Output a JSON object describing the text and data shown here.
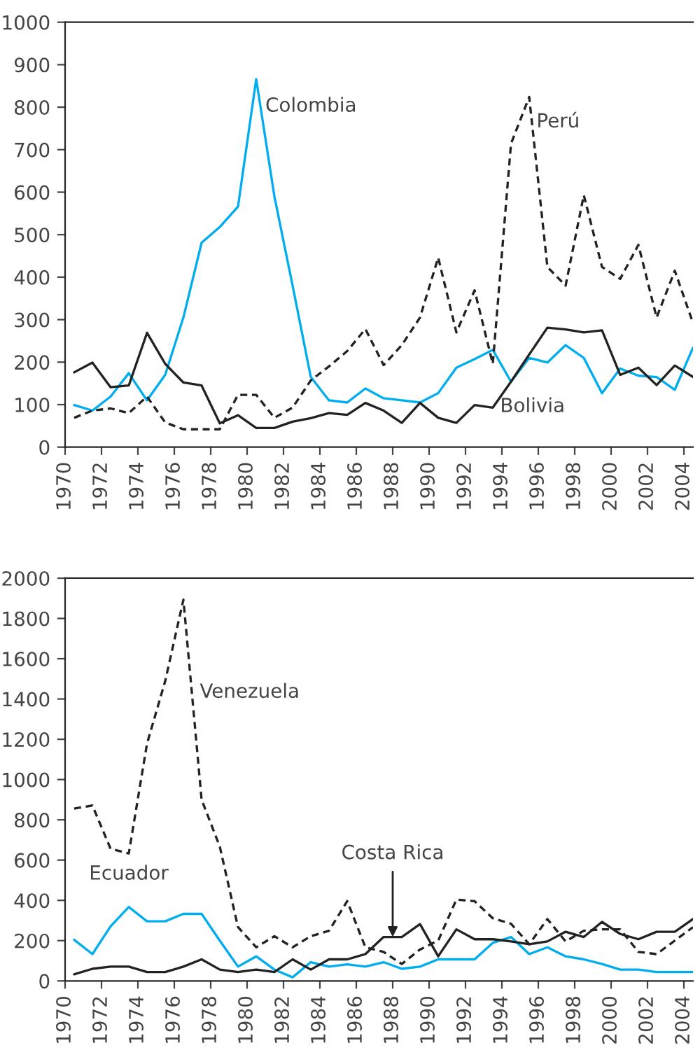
{
  "chart_data": [
    {
      "type": "line",
      "x": [
        1970.5,
        1971.5,
        1972.5,
        1973.5,
        1974.5,
        1975.5,
        1976.5,
        1977.5,
        1978.5,
        1979.5,
        1980.5,
        1981.5,
        1982.5,
        1983.5,
        1984.5,
        1985.5,
        1986.5,
        1987.5,
        1988.5,
        1989.5,
        1990.5,
        1991.5,
        1992.5,
        1993.5,
        1994.5,
        1995.5,
        1996.5,
        1997.5,
        1998.5,
        1999.5,
        2000.5,
        2001.5,
        2002.5,
        2003.5,
        2004.5
      ],
      "xlim": [
        1970,
        2004.5
      ],
      "xticks": [
        1970,
        1972,
        1974,
        1976,
        1978,
        1980,
        1982,
        1984,
        1986,
        1988,
        1990,
        1992,
        1994,
        1996,
        1998,
        2000,
        2002,
        2004
      ],
      "ylim": [
        0,
        1000
      ],
      "yticks": [
        0,
        100,
        200,
        300,
        400,
        500,
        600,
        700,
        800,
        900,
        1000
      ],
      "grid": false,
      "series": [
        {
          "color": "#00aeef",
          "line_style": "solid",
          "values": [
            99,
            86,
            119,
            174,
            110,
            170,
            305,
            481,
            518,
            566,
            866,
            590,
            380,
            165,
            110,
            105,
            138,
            115,
            110,
            105,
            127,
            187,
            207,
            229,
            154,
            210,
            199,
            240,
            210,
            127,
            185,
            168,
            165,
            135,
            234
          ]
        },
        {
          "color": "#222222",
          "line_style": "solid",
          "values": [
            176,
            199,
            141,
            145,
            269,
            196,
            152,
            145,
            56,
            75,
            45,
            45,
            60,
            68,
            80,
            76,
            104,
            86,
            57,
            104,
            69,
            57,
            99,
            93,
            154,
            218,
            281,
            277,
            270,
            275,
            170,
            187,
            146,
            192,
            165
          ]
        },
        {
          "color": "#222222",
          "line_style": "dashed",
          "values": [
            69,
            86,
            91,
            80,
            119,
            58,
            42,
            42,
            42,
            123,
            123,
            69,
            93,
            157,
            190,
            226,
            278,
            193,
            240,
            305,
            446,
            270,
            369,
            196,
            714,
            824,
            424,
            380,
            593,
            424,
            396,
            476,
            305,
            415,
            292
          ]
        }
      ],
      "annotations": [
        {
          "text": "Colombia",
          "x": 1981,
          "y": 802
        },
        {
          "text": "Perú",
          "x": 1995.9,
          "y": 765
        },
        {
          "text": "Bolivia",
          "x": 1993.9,
          "y": 95
        }
      ]
    },
    {
      "type": "line",
      "x": [
        1970.5,
        1971.5,
        1972.5,
        1973.5,
        1974.5,
        1975.5,
        1976.5,
        1977.5,
        1978.5,
        1979.5,
        1980.5,
        1981.5,
        1982.5,
        1983.5,
        1984.5,
        1985.5,
        1986.5,
        1987.5,
        1988.5,
        1989.5,
        1990.5,
        1991.5,
        1992.5,
        1993.5,
        1994.5,
        1995.5,
        1996.5,
        1997.5,
        1998.5,
        1999.5,
        2000.5,
        2001.5,
        2002.5,
        2003.5,
        2004.5
      ],
      "xlim": [
        1970,
        2004.5
      ],
      "xticks": [
        1970,
        1972,
        1974,
        1976,
        1978,
        1980,
        1982,
        1984,
        1986,
        1988,
        1990,
        1992,
        1994,
        1996,
        1998,
        2000,
        2002,
        2004
      ],
      "ylim": [
        0,
        2000
      ],
      "yticks": [
        0,
        200,
        400,
        600,
        800,
        1000,
        1200,
        1400,
        1600,
        1800,
        2000
      ],
      "grid": false,
      "series": [
        {
          "color": "#222222",
          "line_style": "dashed",
          "values": [
            856,
            871,
            656,
            633,
            1178,
            1489,
            1893,
            900,
            667,
            267,
            167,
            222,
            167,
            222,
            249,
            396,
            167,
            144,
            84,
            156,
            200,
            404,
            396,
            311,
            284,
            182,
            307,
            196,
            249,
            256,
            256,
            144,
            133,
            200,
            267
          ]
        },
        {
          "name": "Ecuador",
          "color": "#00aeef",
          "line_style": "solid",
          "values": [
            204,
            133,
            271,
            367,
            296,
            296,
            333,
            333,
            200,
            71,
            122,
            56,
            18,
            93,
            71,
            82,
            71,
            93,
            60,
            71,
            107,
            107,
            107,
            189,
            218,
            133,
            167,
            122,
            107,
            84,
            56,
            56,
            44,
            44,
            44
          ]
        },
        {
          "color": "#222222",
          "line_style": "solid",
          "values": [
            33,
            60,
            71,
            71,
            44,
            44,
            71,
            107,
            56,
            44,
            56,
            44,
            107,
            56,
            107,
            107,
            133,
            218,
            218,
            282,
            122,
            256,
            207,
            207,
            196,
            182,
            196,
            244,
            218,
            293,
            233,
            207,
            244,
            244,
            307
          ]
        }
      ],
      "annotations": [
        {
          "text": "Venezuela",
          "x": 1977.4,
          "y": 1433
        },
        {
          "text": "Costa Rica",
          "x": 1988,
          "y": 218
        }
      ]
    }
  ]
}
